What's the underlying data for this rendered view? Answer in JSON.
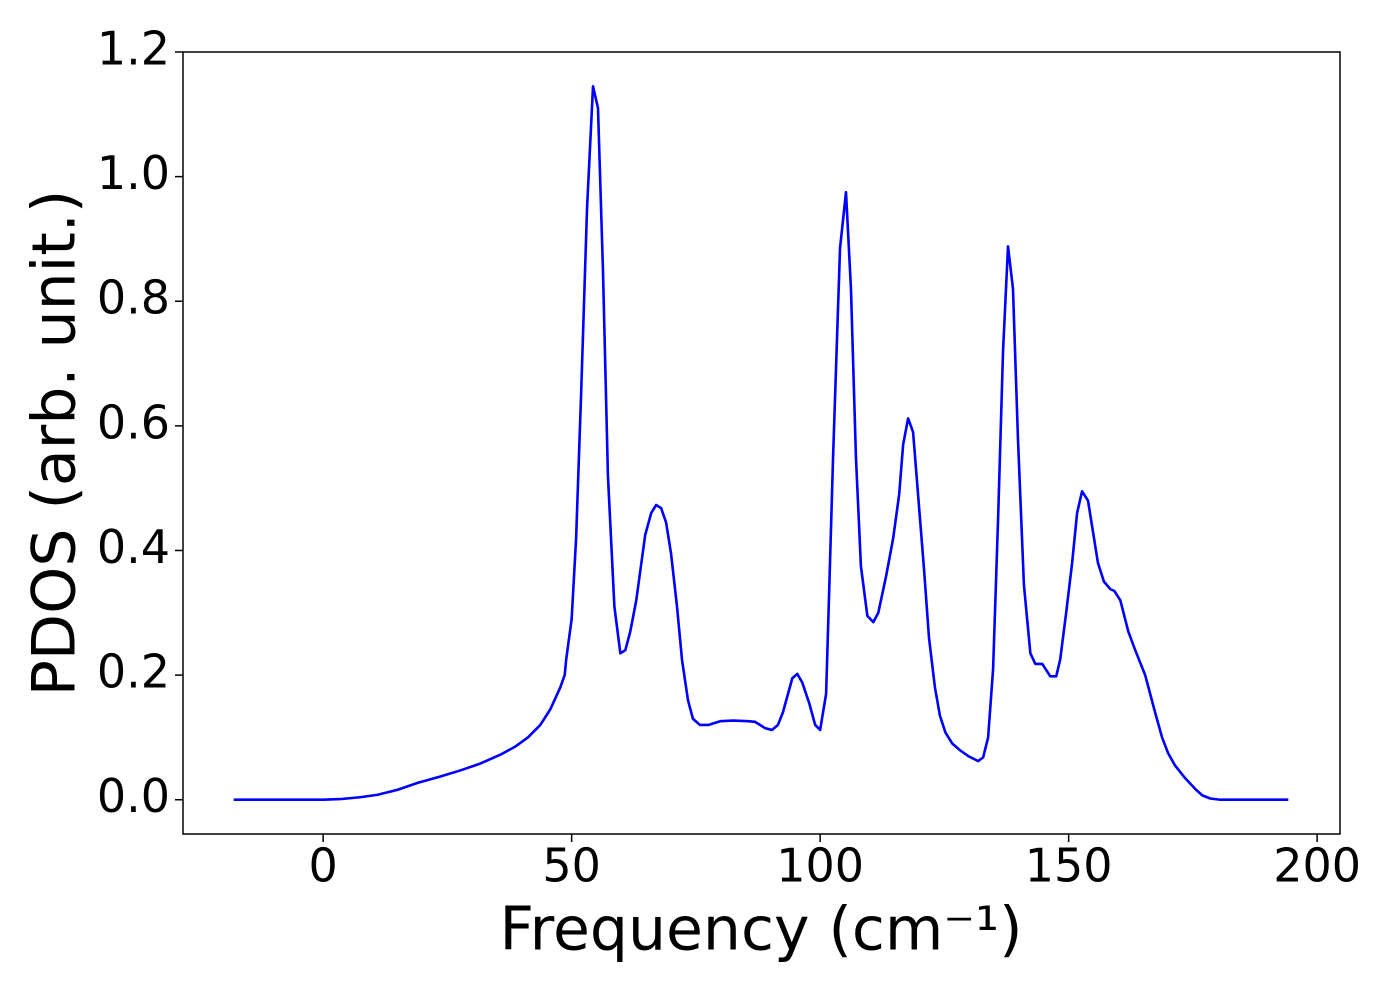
{
  "chart_data": {
    "type": "line",
    "xlabel": "Frequency (cm⁻¹)",
    "ylabel": "PDOS (arb. unit.)",
    "xlim": [
      -28.2,
      204.6
    ],
    "ylim": [
      -0.055,
      1.2
    ],
    "xticks": [
      0,
      50,
      100,
      150,
      200
    ],
    "yticks": [
      {
        "value": 0,
        "label": "0.0"
      },
      0.2,
      0.4,
      0.6,
      0.8,
      {
        "value": 1,
        "label": "1.0"
      },
      1.2
    ],
    "grid": false,
    "series": [
      {
        "name": "PDOS",
        "color": "#0000ff",
        "x": [
          -18,
          0,
          3.4,
          7.4,
          11,
          15,
          19,
          23.5,
          27.6,
          31.6,
          35.6,
          38.6,
          41.2,
          43.7,
          45.7,
          47.7,
          48.6,
          48.9,
          50,
          50.9,
          51.9,
          53.1,
          54.3,
          55.3,
          56.3,
          57.3,
          58.6,
          59.8,
          60.8,
          61.8,
          63,
          64.8,
          66,
          67,
          68,
          69,
          70,
          71.2,
          72.2,
          73.4,
          74.4,
          75.8,
          77.5,
          79.9,
          82.5,
          85.5,
          86.9,
          88.9,
          90.3,
          91.5,
          92.5,
          94.4,
          95.4,
          96.4,
          97.8,
          99,
          100,
          101.2,
          101.8,
          102.6,
          104,
          105.2,
          106.2,
          107.2,
          108.2,
          109.5,
          110.7,
          111.7,
          113.3,
          114.7,
          115.9,
          116.7,
          117.7,
          118.7,
          119.7,
          120.9,
          121.9,
          123.1,
          124.1,
          125.2,
          126.6,
          128.2,
          129.8,
          131.8,
          132.8,
          133.8,
          134.8,
          135.8,
          136.8,
          137.8,
          138.8,
          139.8,
          141,
          142.3,
          143.3,
          144.7,
          146.3,
          147.5,
          148.3,
          149.5,
          150.7,
          151.7,
          152.7,
          153.9,
          154.9,
          155.9,
          157.1,
          158.4,
          159.2,
          160.4,
          162,
          163.4,
          165.4,
          167.4,
          168.8,
          170,
          171.4,
          173.4,
          175.5,
          176.9,
          178.5,
          180.5,
          194.2
        ],
        "values": [
          0,
          0,
          0.001,
          0.004,
          0.008,
          0.016,
          0.027,
          0.037,
          0.047,
          0.058,
          0.072,
          0.085,
          0.1,
          0.12,
          0.145,
          0.18,
          0.2,
          0.225,
          0.29,
          0.42,
          0.65,
          0.95,
          1.145,
          1.11,
          0.85,
          0.52,
          0.31,
          0.235,
          0.24,
          0.27,
          0.32,
          0.425,
          0.46,
          0.473,
          0.468,
          0.445,
          0.395,
          0.31,
          0.225,
          0.16,
          0.13,
          0.12,
          0.12,
          0.126,
          0.127,
          0.126,
          0.125,
          0.115,
          0.112,
          0.12,
          0.14,
          0.195,
          0.202,
          0.188,
          0.155,
          0.12,
          0.112,
          0.17,
          0.33,
          0.55,
          0.885,
          0.975,
          0.82,
          0.55,
          0.375,
          0.295,
          0.285,
          0.3,
          0.36,
          0.42,
          0.49,
          0.57,
          0.612,
          0.59,
          0.49,
          0.37,
          0.26,
          0.18,
          0.135,
          0.108,
          0.09,
          0.079,
          0.07,
          0.062,
          0.068,
          0.1,
          0.21,
          0.45,
          0.72,
          0.888,
          0.82,
          0.58,
          0.345,
          0.235,
          0.218,
          0.218,
          0.198,
          0.198,
          0.225,
          0.3,
          0.38,
          0.46,
          0.495,
          0.48,
          0.43,
          0.38,
          0.35,
          0.338,
          0.335,
          0.32,
          0.27,
          0.24,
          0.2,
          0.14,
          0.1,
          0.075,
          0.055,
          0.035,
          0.017,
          0.007,
          0.002,
          0,
          0
        ]
      }
    ]
  }
}
